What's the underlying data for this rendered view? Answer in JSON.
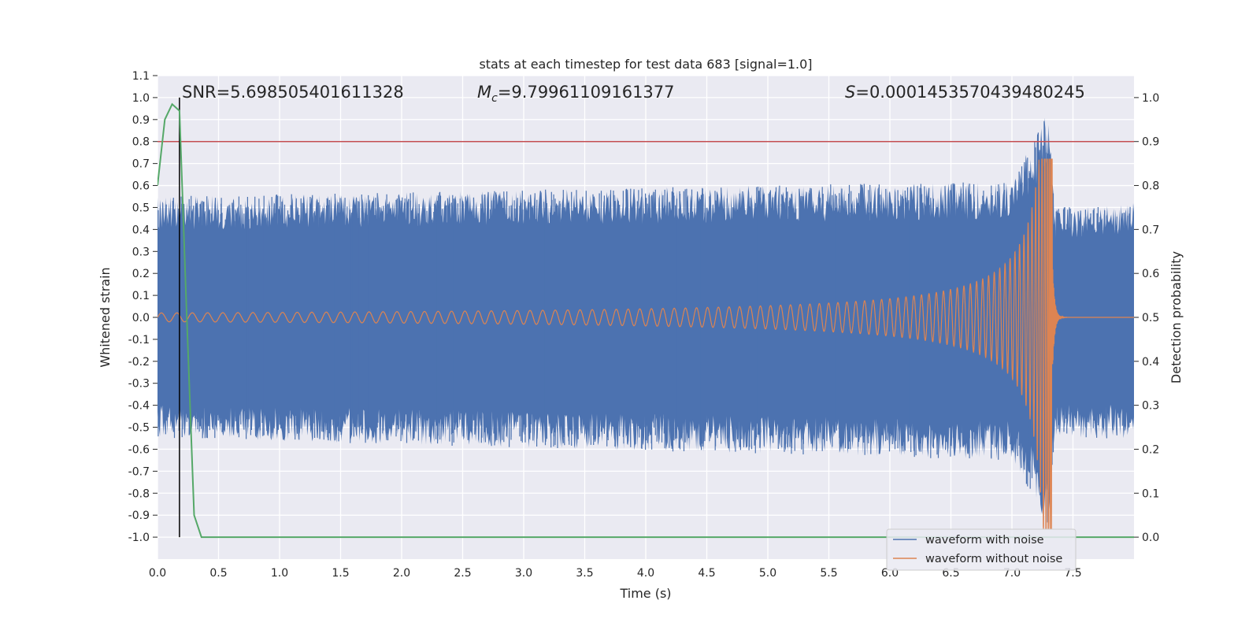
{
  "chart_data": {
    "type": "line",
    "title": "stats at each timestep for test data 683 [signal=1.0]",
    "xlabel": "Time (s)",
    "ylabel_left": "Whitened strain",
    "ylabel_right": "Detection probability",
    "xlim": [
      0.0,
      8.0
    ],
    "ylim_left": [
      -1.1,
      1.1
    ],
    "ylim_right": [
      -0.05,
      1.05
    ],
    "x_ticks": [
      "0.0",
      "0.5",
      "1.0",
      "1.5",
      "2.0",
      "2.5",
      "3.0",
      "3.5",
      "4.0",
      "4.5",
      "5.0",
      "5.5",
      "6.0",
      "6.5",
      "7.0",
      "7.5"
    ],
    "y_left_ticks": [
      "1.1",
      "1.0",
      "0.9",
      "0.8",
      "0.7",
      "0.6",
      "0.5",
      "0.4",
      "0.3",
      "0.2",
      "0.1",
      "0.0",
      "-0.1",
      "-0.2",
      "-0.3",
      "-0.4",
      "-0.5",
      "-0.6",
      "-0.7",
      "-0.8",
      "-0.9",
      "-1.0"
    ],
    "y_right_ticks": [
      "1.0",
      "0.9",
      "0.8",
      "0.7",
      "0.6",
      "0.5",
      "0.4",
      "0.3",
      "0.2",
      "0.1",
      "0.0"
    ],
    "grid": true,
    "legend_position": "lower right",
    "annotations": {
      "snr": "SNR=5.698505401611328",
      "mc_symbol": "M",
      "mc_sub": "c",
      "mc_value": "=9.79961109161377",
      "s_symbol": "S",
      "s_value": "=0.0001453570439480245"
    },
    "series": [
      {
        "name": "waveform with noise",
        "color": "#4c72b0",
        "axis": "left",
        "description_envelope": {
          "x": [
            0.0,
            7.0,
            7.3,
            7.35,
            8.0
          ],
          "upper": [
            0.55,
            0.62,
            0.95,
            0.5,
            0.52
          ],
          "lower": [
            -0.55,
            -0.65,
            -0.95,
            -0.55,
            -0.55
          ]
        }
      },
      {
        "name": "waveform without noise",
        "color": "#dd8452",
        "axis": "left",
        "chirp": {
          "start_x": 0.0,
          "merger_x": 7.33,
          "start_amplitude": 0.02,
          "peak_upper": 0.72,
          "peak_lower": -0.96
        }
      },
      {
        "color": "#55a868",
        "axis": "right",
        "x": [
          0.0,
          0.06,
          0.12,
          0.18,
          0.24,
          0.3,
          0.36,
          0.42,
          8.0
        ],
        "y": [
          0.8,
          0.95,
          0.985,
          0.97,
          0.5,
          0.05,
          0.0,
          0.0,
          0.0
        ]
      }
    ],
    "reference_lines": [
      {
        "kind": "horizontal",
        "axis": "left",
        "y": 0.8,
        "color": "#c44e52"
      },
      {
        "kind": "vertical",
        "x": 0.18,
        "y_range": [
          -1.0,
          1.0
        ],
        "color": "#000000"
      }
    ]
  }
}
